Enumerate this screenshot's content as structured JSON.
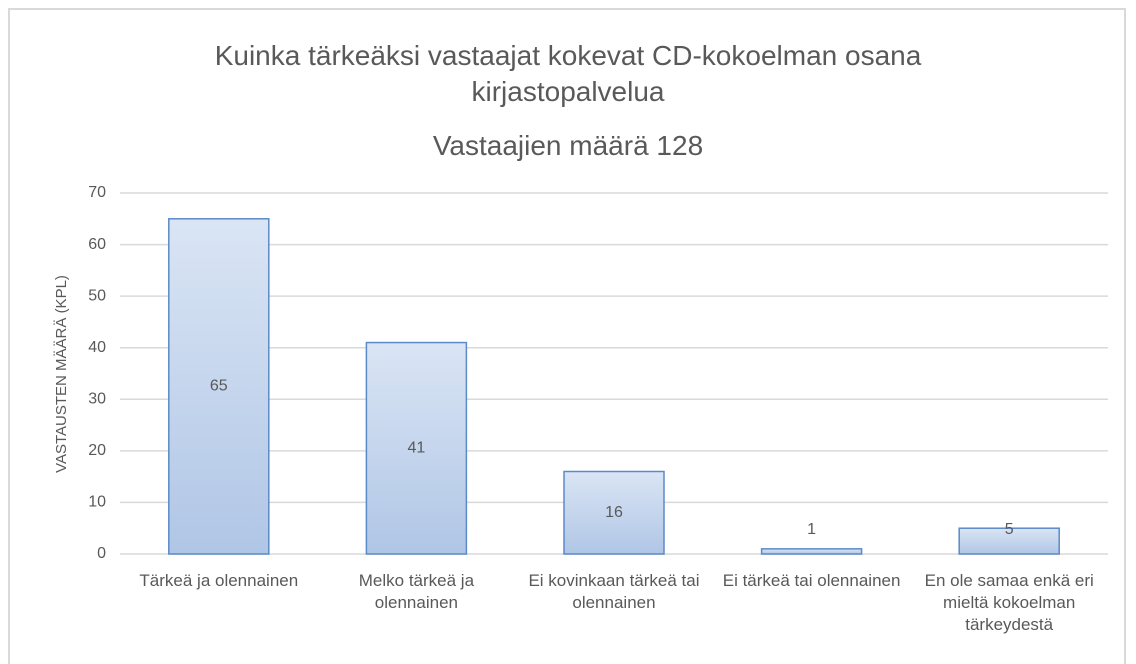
{
  "chart_data": {
    "type": "bar",
    "title": "Kuinka tärkeäksi vastaajat kokevat CD-kokoelman osana kirjastopalvelua",
    "subtitle": "Vastaajien määrä 128",
    "y_label": "VASTAUSTEN MÄÄRÄ (KPL)",
    "categories": [
      "Tärkeä ja olennainen",
      "Melko tärkeä ja olennainen",
      "Ei kovinkaan tärkeä tai olennainen",
      "Ei tärkeä tai olennainen",
      "En ole samaa enkä eri mieltä kokoelman tärkeydestä"
    ],
    "values": [
      65,
      41,
      16,
      1,
      5
    ],
    "color": "#c5d5ec",
    "ylim": [
      0,
      70
    ],
    "yticks": [
      0,
      10,
      20,
      30,
      40,
      50,
      60,
      70
    ],
    "grid": true
  }
}
